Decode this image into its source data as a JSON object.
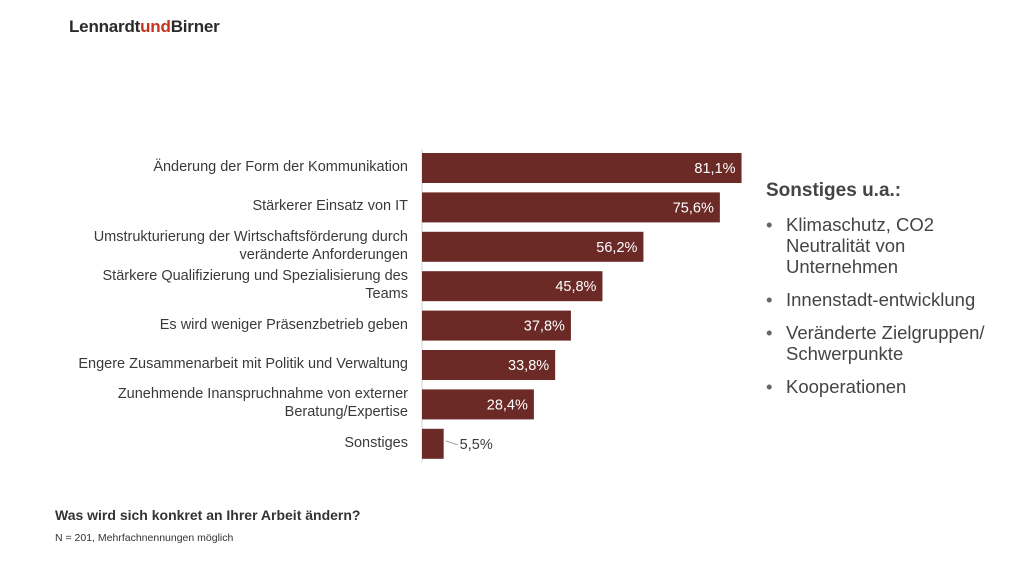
{
  "logo": {
    "part1": "Lennardt",
    "part2": "und",
    "part3": "Birner"
  },
  "chart_data": {
    "type": "bar",
    "orientation": "horizontal",
    "categories": [
      "Änderung der Form der Kommunikation",
      "Stärkerer Einsatz von IT",
      "Umstrukturierung der Wirtschaftsförderung durch veränderte Anforderungen",
      "Stärkere Qualifizierung und Spezialisierung des Teams",
      "Es wird weniger Präsenzbetrieb geben",
      "Engere Zusammenarbeit mit Politik und Verwaltung",
      "Zunehmende Inanspruchnahme von externer Beratung/Expertise",
      "Sonstiges"
    ],
    "values": [
      81.1,
      75.6,
      56.2,
      45.8,
      37.8,
      33.8,
      28.4,
      5.5
    ],
    "value_labels": [
      "81,1%",
      "75,6%",
      "56,2%",
      "45,8%",
      "37,8%",
      "33,8%",
      "28,4%",
      "5,5%"
    ],
    "bar_color": "#6b2a26",
    "xlim": [
      0,
      100
    ],
    "grid": false
  },
  "sidebar": {
    "title": "Sonstiges u.a.:",
    "items": [
      "Klimaschutz, CO2 Neutralität von Unternehmen",
      "Innenstadt-entwicklung",
      "Veränderte Zielgruppen/ Schwerpunkte",
      "Kooperationen"
    ]
  },
  "footer": {
    "question": "Was wird sich konkret an Ihrer Arbeit ändern?",
    "note": "N = 201, Mehrfachnennungen möglich"
  }
}
